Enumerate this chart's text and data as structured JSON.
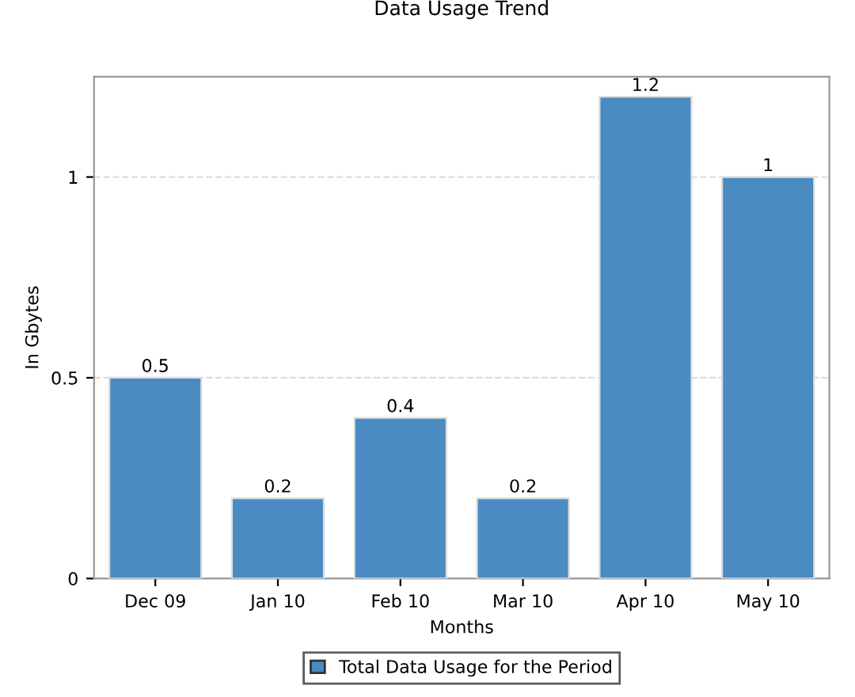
{
  "chart_data": {
    "type": "bar",
    "title": "Data Usage Trend",
    "xlabel": "Months",
    "ylabel": "In Gbytes",
    "categories": [
      "Dec 09",
      "Jan 10",
      "Feb 10",
      "Mar 10",
      "Apr 10",
      "May 10"
    ],
    "series": [
      {
        "name": "Total Data Usage for the Period",
        "color": "#4a8bc2",
        "values": [
          0.5,
          0.2,
          0.4,
          0.2,
          1.2,
          1
        ]
      }
    ],
    "ylim": [
      0,
      1.25
    ],
    "yticks": [
      0,
      0.5,
      1
    ],
    "grid": "y",
    "legend": "bottom",
    "data_labels": true
  }
}
